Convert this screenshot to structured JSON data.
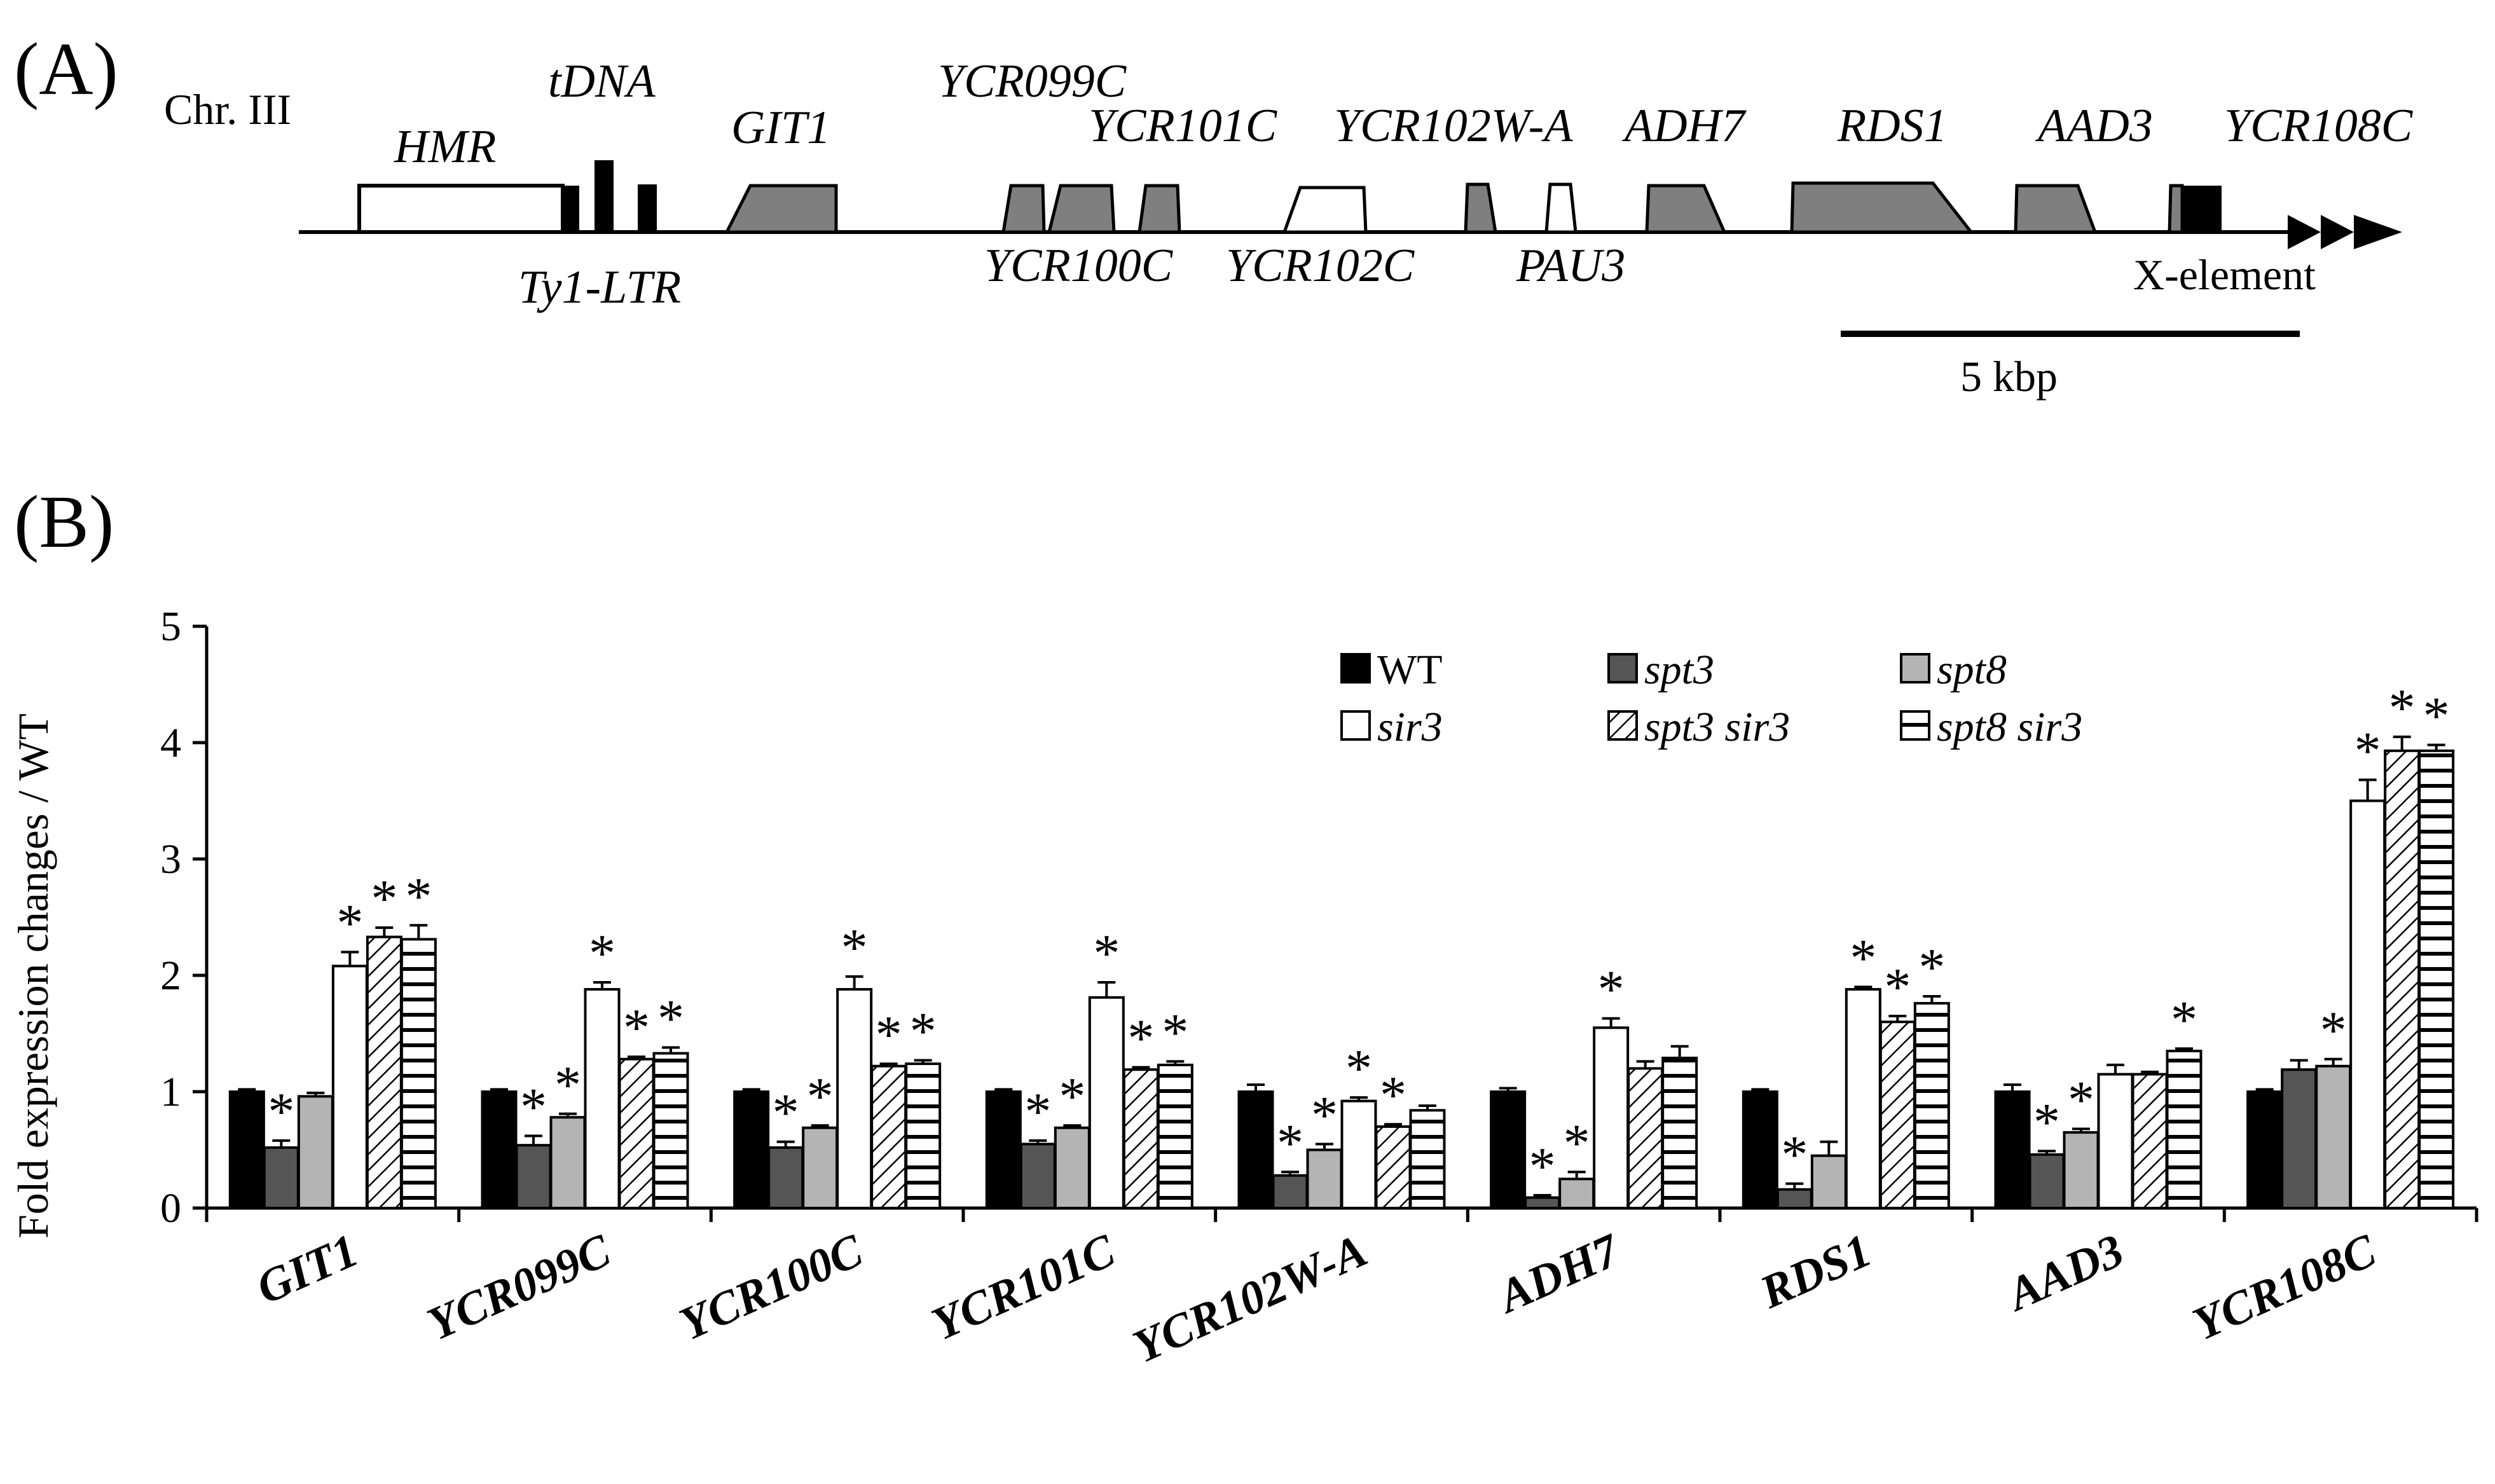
{
  "panels": {
    "a_label": "(A)",
    "b_label": "(B)"
  },
  "map": {
    "chromosome": "Chr. III",
    "scale_label": "5 kbp",
    "labels": {
      "hmr": "HMR",
      "tdna": "tDNA",
      "ty1": "Ty1-LTR",
      "git1": "GIT1",
      "ycr099c": "YCR099C",
      "ycr100c": "YCR100C",
      "ycr101c": "YCR101C",
      "ycr102c": "YCR102C",
      "ycr102wa": "YCR102W-A",
      "pau3": "PAU3",
      "adh7": "ADH7",
      "rds1": "RDS1",
      "aad3": "AAD3",
      "ycr108c": "YCR108C",
      "xelement": "X-element"
    }
  },
  "chart_data": {
    "type": "bar",
    "title": "",
    "xlabel": "",
    "ylabel": "Fold expression changes / WT",
    "ylim": [
      0,
      5
    ],
    "yticks": [
      "0",
      "1",
      "2",
      "3",
      "4",
      "5"
    ],
    "categories": [
      "GIT1",
      "YCR099C",
      "YCR100C",
      "YCR101C",
      "YCR102W-A",
      "ADH7",
      "RDS1",
      "AAD3",
      "YCR108C"
    ],
    "series": [
      {
        "name": "WT",
        "key": "wt",
        "values": [
          1.0,
          1.0,
          1.0,
          1.0,
          1.0,
          1.0,
          1.0,
          1.0,
          1.0
        ],
        "errors": [
          0.02,
          0.02,
          0.02,
          0.02,
          0.06,
          0.03,
          0.02,
          0.06,
          0.02
        ]
      },
      {
        "name": "spt3",
        "key": "spt3",
        "values": [
          0.52,
          0.54,
          0.52,
          0.55,
          0.28,
          0.09,
          0.16,
          0.46,
          1.19
        ],
        "errors": [
          0.06,
          0.08,
          0.05,
          0.03,
          0.03,
          0.02,
          0.05,
          0.03,
          0.08
        ]
      },
      {
        "name": "spt8",
        "key": "spt8",
        "values": [
          0.96,
          0.78,
          0.69,
          0.69,
          0.5,
          0.25,
          0.45,
          0.65,
          1.22
        ],
        "errors": [
          0.03,
          0.03,
          0.02,
          0.02,
          0.05,
          0.06,
          0.12,
          0.03,
          0.06
        ]
      },
      {
        "name": "sir3",
        "key": "sir3",
        "values": [
          2.08,
          1.88,
          1.88,
          1.81,
          0.92,
          1.55,
          1.88,
          1.15,
          3.5
        ],
        "errors": [
          0.12,
          0.06,
          0.11,
          0.13,
          0.03,
          0.08,
          0.02,
          0.08,
          0.18
        ]
      },
      {
        "name": "spt3 sir3",
        "key": "spt3sir3",
        "values": [
          2.33,
          1.28,
          1.22,
          1.19,
          0.7,
          1.2,
          1.6,
          1.15,
          3.93
        ],
        "errors": [
          0.08,
          0.02,
          0.02,
          0.02,
          0.02,
          0.06,
          0.05,
          0.02,
          0.12
        ]
      },
      {
        "name": "spt8 sir3",
        "key": "spt8sir3",
        "values": [
          2.31,
          1.33,
          1.24,
          1.23,
          0.84,
          1.29,
          1.76,
          1.35,
          3.93
        ],
        "errors": [
          0.12,
          0.05,
          0.03,
          0.03,
          0.04,
          0.1,
          0.06,
          0.02,
          0.05
        ]
      }
    ],
    "significance": [
      [
        false,
        true,
        false,
        true,
        true,
        true
      ],
      [
        false,
        true,
        true,
        true,
        true,
        true
      ],
      [
        false,
        true,
        true,
        true,
        true,
        true
      ],
      [
        false,
        true,
        true,
        true,
        true,
        true
      ],
      [
        false,
        true,
        true,
        true,
        true,
        false
      ],
      [
        false,
        true,
        true,
        true,
        false,
        false
      ],
      [
        false,
        true,
        false,
        true,
        true,
        true
      ],
      [
        false,
        true,
        true,
        false,
        false,
        true
      ],
      [
        false,
        false,
        true,
        true,
        true,
        true
      ]
    ],
    "significance_symbol": "*",
    "legend": [
      "WT",
      "spt3",
      "spt8",
      "sir3",
      "spt3 sir3",
      "spt8 sir3"
    ],
    "legend_position": "top-right"
  },
  "colors": {
    "wt": "#000000",
    "spt3": "#555555",
    "spt8": "#b4b4b4",
    "sir3": "#ffffff",
    "gene_fill": "#7f7f7f"
  }
}
